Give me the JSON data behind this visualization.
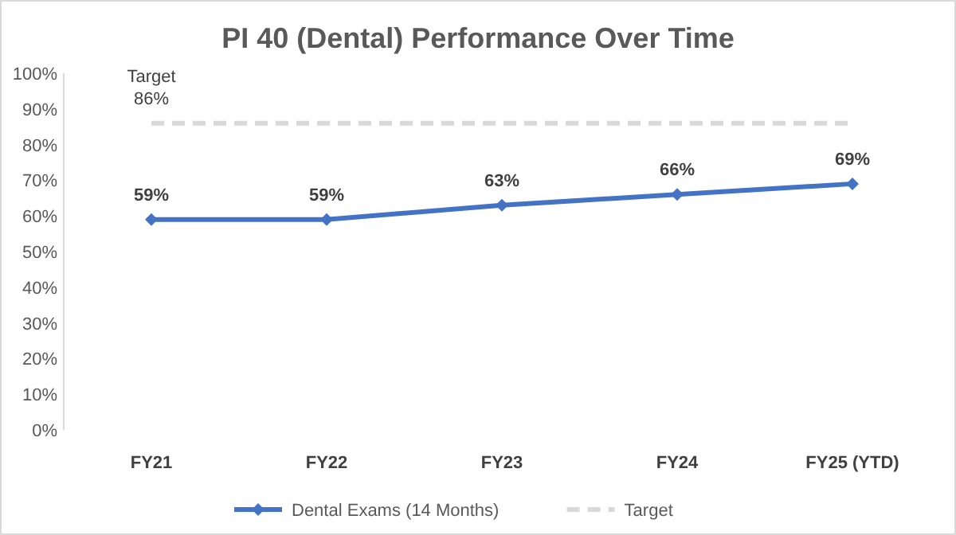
{
  "chart_data": {
    "type": "line",
    "title": "PI 40 (Dental) Performance Over Time",
    "categories": [
      "FY21",
      "FY22",
      "FY23",
      "FY24",
      "FY25 (YTD)"
    ],
    "series": [
      {
        "name": "Dental Exams (14 Months)",
        "color": "#4472c4",
        "values": [
          59,
          59,
          63,
          66,
          69
        ],
        "marker": "diamond",
        "line_style": "solid",
        "value_labels": [
          "59%",
          "59%",
          "63%",
          "66%",
          "69%"
        ]
      },
      {
        "name": "Target",
        "color": "#d9d9d9",
        "values": [
          86,
          86,
          86,
          86,
          86
        ],
        "marker": "none",
        "line_style": "dashed",
        "value_labels": [
          "86%",
          null,
          null,
          null,
          null
        ]
      }
    ],
    "annotations": [
      {
        "text": "Target",
        "x": "FY21",
        "y": 86
      }
    ],
    "ylim": [
      0,
      100
    ],
    "yticks": [
      {
        "value": 0,
        "label": "0%"
      },
      {
        "value": 10,
        "label": "10%"
      },
      {
        "value": 20,
        "label": "20%"
      },
      {
        "value": 30,
        "label": "30%"
      },
      {
        "value": 40,
        "label": "40%"
      },
      {
        "value": 50,
        "label": "50%"
      },
      {
        "value": 60,
        "label": "60%"
      },
      {
        "value": 70,
        "label": "70%"
      },
      {
        "value": 80,
        "label": "80%"
      },
      {
        "value": 90,
        "label": "90%"
      },
      {
        "value": 100,
        "label": "100%"
      }
    ],
    "grid": false,
    "legend": "bottom"
  }
}
